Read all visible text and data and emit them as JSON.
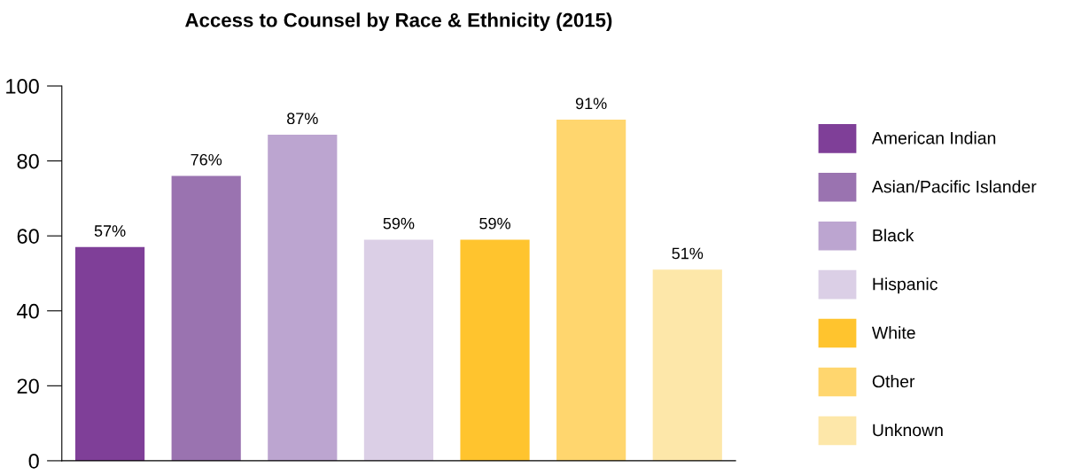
{
  "chart_data": {
    "type": "bar",
    "title": "Access to Counsel by Race & Ethnicity (2015)",
    "categories": [
      null,
      null,
      null,
      null,
      null,
      null,
      null
    ],
    "series": [
      {
        "name": "American Indian",
        "color": "#7f3f98",
        "values": [
          57,
          null,
          null,
          null,
          null,
          null,
          null
        ],
        "value_labels": [
          "57%",
          null,
          null,
          null,
          null,
          null,
          null
        ]
      },
      {
        "name": "Asian/Pacific Islander",
        "color": "#9a73b0",
        "values": [
          null,
          76,
          null,
          null,
          null,
          null,
          null
        ],
        "value_labels": [
          null,
          "76%",
          null,
          null,
          null,
          null,
          null
        ]
      },
      {
        "name": "Black",
        "color": "#bca5d0",
        "values": [
          null,
          null,
          87,
          null,
          null,
          null,
          null
        ],
        "value_labels": [
          null,
          null,
          "87%",
          null,
          null,
          null,
          null
        ]
      },
      {
        "name": "Hispanic",
        "color": "#dbcfe6",
        "values": [
          null,
          null,
          null,
          59,
          null,
          null,
          null
        ],
        "value_labels": [
          null,
          null,
          null,
          "59%",
          null,
          null,
          null
        ]
      },
      {
        "name": "White",
        "color": "#ffc42e",
        "values": [
          null,
          null,
          null,
          null,
          59,
          null,
          null
        ],
        "value_labels": [
          null,
          null,
          null,
          null,
          "59%",
          null,
          null
        ]
      },
      {
        "name": "Other",
        "color": "#ffd66e",
        "values": [
          null,
          null,
          null,
          null,
          null,
          91,
          null
        ],
        "value_labels": [
          null,
          null,
          null,
          null,
          null,
          "91%",
          null
        ]
      },
      {
        "name": "Unknown",
        "color": "#fde7a9",
        "values": [
          null,
          null,
          null,
          null,
          null,
          null,
          51
        ],
        "value_labels": [
          null,
          null,
          null,
          null,
          null,
          null,
          "51%"
        ]
      }
    ],
    "ylim": [
      0,
      100
    ],
    "yticks": [
      0,
      20,
      40,
      60,
      80,
      100
    ],
    "grid": false,
    "legend": "right"
  }
}
